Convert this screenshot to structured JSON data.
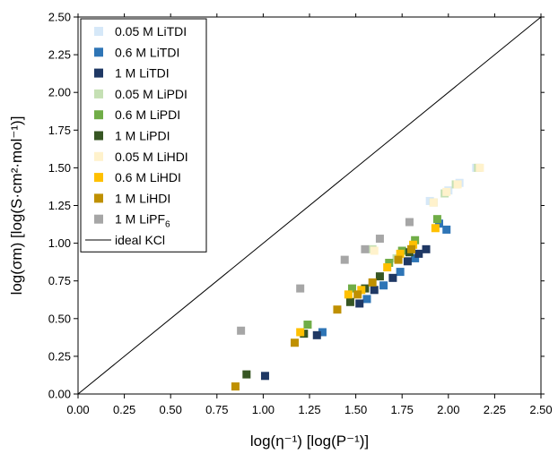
{
  "chart_data": {
    "type": "scatter",
    "xlabel": "log(η⁻¹) [log(P⁻¹)]",
    "ylabel": "log(σm) [log(S·cm²·mol⁻¹)]",
    "xlim": [
      0,
      2.5
    ],
    "ylim": [
      0,
      2.5
    ],
    "x_ticks": [
      "0.00",
      "0.25",
      "0.50",
      "0.75",
      "1.00",
      "1.25",
      "1.50",
      "1.75",
      "2.00",
      "2.25",
      "2.50"
    ],
    "y_ticks": [
      "0.00",
      "0.25",
      "0.50",
      "0.75",
      "1.00",
      "1.25",
      "1.50",
      "1.75",
      "2.00",
      "2.25",
      "2.50"
    ],
    "grid": false,
    "legend_position": "top-left",
    "series": [
      {
        "name": "0.05 M LiTDI",
        "color": "#d6e8f8",
        "points": [
          [
            1.9,
            1.28
          ],
          [
            2.0,
            1.35
          ],
          [
            2.06,
            1.4
          ],
          [
            2.15,
            1.5
          ]
        ]
      },
      {
        "name": "0.6 M LiTDI",
        "color": "#2e75b6",
        "points": [
          [
            1.32,
            0.41
          ],
          [
            1.56,
            0.63
          ],
          [
            1.65,
            0.72
          ],
          [
            1.74,
            0.81
          ],
          [
            1.82,
            0.9
          ],
          [
            1.95,
            1.13
          ],
          [
            1.99,
            1.09
          ]
        ]
      },
      {
        "name": "1 M LiTDI",
        "color": "#1f3864",
        "points": [
          [
            1.01,
            0.12
          ],
          [
            1.29,
            0.39
          ],
          [
            1.52,
            0.6
          ],
          [
            1.6,
            0.69
          ],
          [
            1.7,
            0.77
          ],
          [
            1.78,
            0.88
          ],
          [
            1.84,
            0.93
          ],
          [
            1.88,
            0.96
          ]
        ]
      },
      {
        "name": "0.05 M LiPDI",
        "color": "#c5e0b4",
        "points": [
          [
            1.59,
            0.96
          ],
          [
            1.72,
            0.9
          ],
          [
            1.92,
            1.27
          ],
          [
            1.98,
            1.33
          ],
          [
            2.04,
            1.39
          ],
          [
            2.16,
            1.5
          ]
        ]
      },
      {
        "name": "0.6 M LiPDI",
        "color": "#70ad47",
        "points": [
          [
            1.24,
            0.46
          ],
          [
            1.48,
            0.7
          ],
          [
            1.68,
            0.87
          ],
          [
            1.75,
            0.95
          ],
          [
            1.82,
            1.02
          ],
          [
            1.94,
            1.16
          ]
        ]
      },
      {
        "name": "1 M LiPDI",
        "color": "#375623",
        "points": [
          [
            0.91,
            0.13
          ],
          [
            1.22,
            0.4
          ],
          [
            1.47,
            0.61
          ],
          [
            1.55,
            0.7
          ],
          [
            1.63,
            0.78
          ],
          [
            1.79,
            0.94
          ]
        ]
      },
      {
        "name": "0.05 M LiHDI",
        "color": "#fff2cc",
        "points": [
          [
            1.6,
            0.95
          ],
          [
            1.92,
            1.27
          ],
          [
            1.99,
            1.34
          ],
          [
            2.05,
            1.39
          ],
          [
            2.17,
            1.5
          ]
        ]
      },
      {
        "name": "0.6 M LiHDI",
        "color": "#ffc000",
        "points": [
          [
            1.2,
            0.41
          ],
          [
            1.46,
            0.66
          ],
          [
            1.53,
            0.69
          ],
          [
            1.67,
            0.84
          ],
          [
            1.74,
            0.93
          ],
          [
            1.81,
            0.99
          ],
          [
            1.93,
            1.1
          ]
        ]
      },
      {
        "name": "1 M LiHDI",
        "color": "#bf9000",
        "points": [
          [
            0.85,
            0.05
          ],
          [
            1.17,
            0.34
          ],
          [
            1.4,
            0.56
          ],
          [
            1.51,
            0.66
          ],
          [
            1.59,
            0.74
          ],
          [
            1.73,
            0.89
          ],
          [
            1.8,
            0.96
          ]
        ]
      },
      {
        "name": "1 M LiPF",
        "name_sub": "6",
        "color": "#a6a6a6",
        "points": [
          [
            0.88,
            0.42
          ],
          [
            1.2,
            0.7
          ],
          [
            1.44,
            0.89
          ],
          [
            1.55,
            0.96
          ],
          [
            1.63,
            1.03
          ],
          [
            1.79,
            1.14
          ]
        ]
      }
    ],
    "reference_line": {
      "name": "ideal KCl",
      "color": "#000000",
      "points": [
        [
          0,
          0
        ],
        [
          2.5,
          2.5
        ]
      ]
    }
  }
}
